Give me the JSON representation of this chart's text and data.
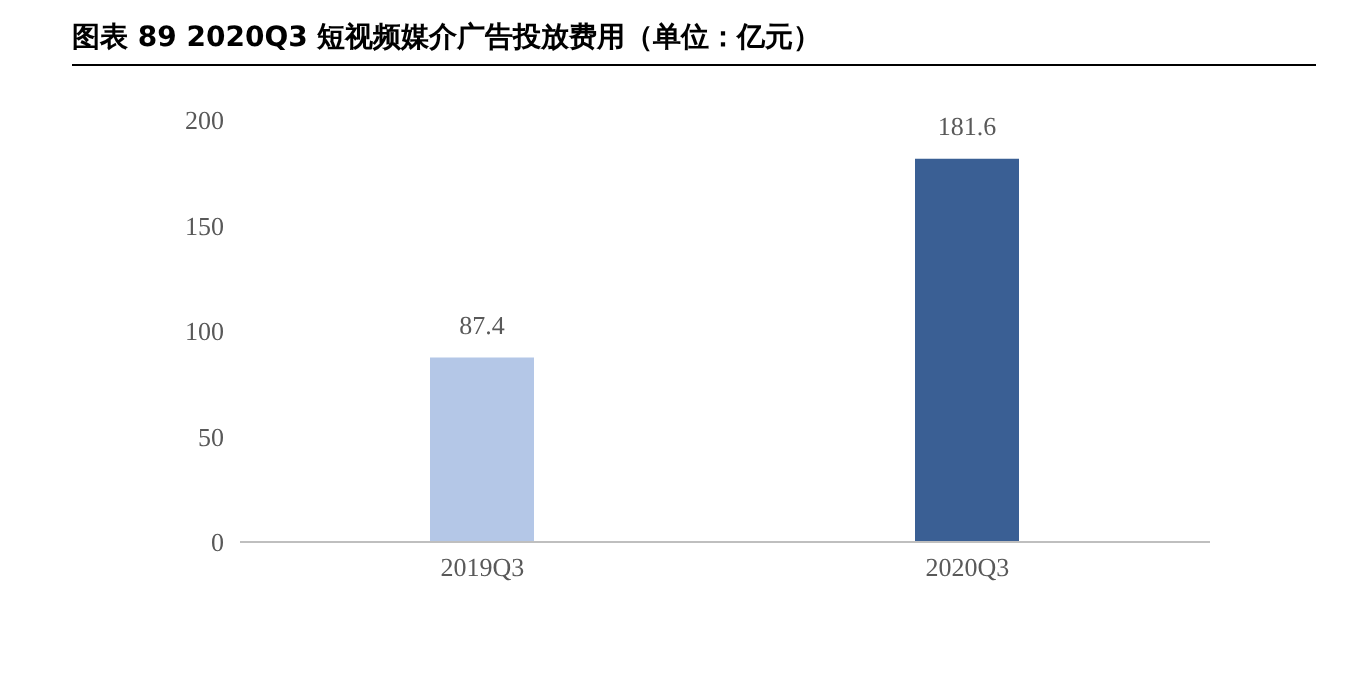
{
  "chart_data": {
    "type": "bar",
    "title": "图表 89 2020Q3 短视频媒介广告投放费用（单位：亿元）",
    "categories": [
      "2019Q3",
      "2020Q3"
    ],
    "values": [
      87.4,
      181.6
    ],
    "colors": [
      "#b4c7e7",
      "#3a5f94"
    ],
    "ylim": [
      0,
      200
    ],
    "yticks": [
      0,
      50,
      100,
      150,
      200
    ],
    "data_labels": true
  }
}
